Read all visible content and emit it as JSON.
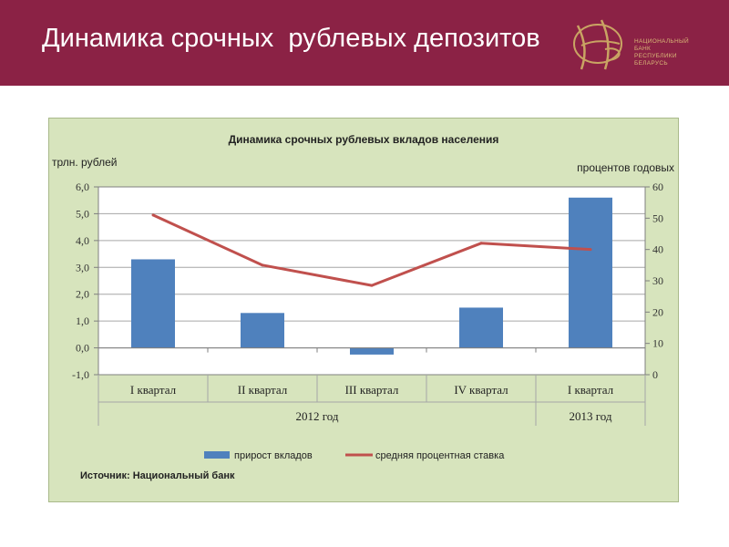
{
  "header": {
    "title": "Динамика срочных  рублевых депозитов",
    "logo_lines": [
      "НАЦИОНАЛЬНЫЙ",
      "БАНК",
      "РЕСПУБЛИКИ",
      "БЕЛАРУСЬ"
    ]
  },
  "colors": {
    "header_bg": "#8b2245",
    "panel_bg": "#d7e4bd",
    "bar": "#4f81bd",
    "line": "#c0504d"
  },
  "chart_data": {
    "type": "bar",
    "title": "Динамика срочных рублевых вкладов населения",
    "ylabel_left": "трлн. рублей",
    "ylabel_right": "процентов годовых",
    "categories": [
      "I квартал",
      "II квартал",
      "III квартал",
      "IV квартал",
      "I квартал"
    ],
    "groups": [
      {
        "label": "2012 год",
        "span": 4
      },
      {
        "label": "2013 год",
        "span": 1
      }
    ],
    "y_left": {
      "min": -1,
      "max": 6,
      "step": 1,
      "tick_labels": [
        "-1,0",
        "0,0",
        "1,0",
        "2,0",
        "3,0",
        "4,0",
        "5,0",
        "6,0"
      ]
    },
    "y_right": {
      "min": 0,
      "max": 60,
      "step": 10,
      "tick_labels": [
        "0",
        "10",
        "20",
        "30",
        "40",
        "50",
        "60"
      ]
    },
    "series": [
      {
        "name": "прирост вкладов",
        "kind": "bar",
        "axis": "left",
        "values": [
          3.3,
          1.3,
          -0.25,
          1.5,
          5.6
        ]
      },
      {
        "name": "средняя процентная  ставка",
        "kind": "line",
        "axis": "right",
        "values": [
          51,
          35,
          28.5,
          42,
          40
        ]
      }
    ],
    "grid": true,
    "legend": "bottom",
    "source": "Источник: Национальный банк"
  }
}
